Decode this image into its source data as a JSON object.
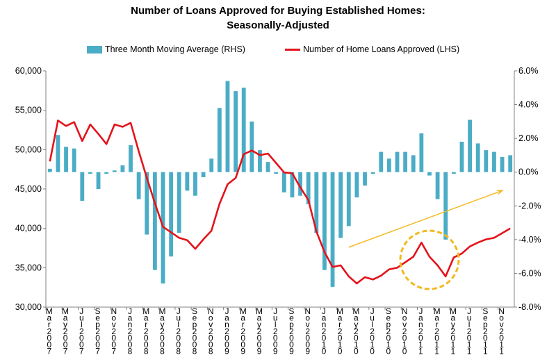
{
  "chart_data": {
    "type": "bar+line",
    "title": "Number of Loans Approved for Buying Established Homes:",
    "subtitle": "Seasonally-Adjusted",
    "legend": {
      "placement": "top"
    },
    "colors": {
      "bar": "#4bacc6",
      "line": "#e3131b",
      "annotation": "#f2b81e"
    },
    "y_left": {
      "min": 30000,
      "max": 60000,
      "step": 5000,
      "ticks": [
        "30,000",
        "35,000",
        "40,000",
        "45,000",
        "50,000",
        "55,000",
        "60,000"
      ]
    },
    "y_right": {
      "min": -8,
      "max": 6,
      "step": 2,
      "ticks": [
        "-8.0%",
        "-6.0%",
        "-4.0%",
        "-2.0%",
        "0.0%",
        "2.0%",
        "4.0%",
        "6.0%"
      ]
    },
    "x_labels": [
      "Mar 2007",
      "May 2007",
      "Jul 2007",
      "Sep 2007",
      "Nov 2007",
      "Jan 2008",
      "Mar 2008",
      "May 2008",
      "Jul 2008",
      "Sep 2008",
      "Nov 2008",
      "Jan 2009",
      "Mar 2009",
      "May 2009",
      "Jul 2009",
      "Sep 2009",
      "Nov 2009",
      "Jan 2010",
      "Mar 2010",
      "May 2010",
      "Jul 2010",
      "Sep 2010",
      "Nov 2010",
      "Jan 2011",
      "Mar 2011",
      "May 2011",
      "Jul 2011",
      "Sep 2011",
      "Nov 2011"
    ],
    "grid": false,
    "series": [
      {
        "name": "Three Month Moving Average (RHS)",
        "type": "bar",
        "axis": "right",
        "values": [
          0.2,
          2.2,
          1.5,
          1.4,
          -1.7,
          -0.1,
          -1.0,
          -0.1,
          0.1,
          0.4,
          1.6,
          -1.6,
          -3.7,
          -5.8,
          -6.6,
          -5.0,
          -3.6,
          -1.1,
          -1.4,
          -0.3,
          0.8,
          3.8,
          5.4,
          4.8,
          5.0,
          3.0,
          1.3,
          0.6,
          -0.1,
          -1.2,
          -1.5,
          -1.4,
          -1.9,
          -3.6,
          -5.8,
          -6.8,
          -3.9,
          -3.2,
          -1.5,
          -0.8,
          -0.1,
          1.2,
          0.8,
          1.2,
          1.2,
          1.0,
          2.3,
          -0.2,
          -1.6,
          -4.0,
          -0.1,
          1.8,
          3.1,
          1.7,
          1.3,
          1.2,
          0.9,
          1.0
        ]
      },
      {
        "name": "Number of Home Loans Approved (LHS)",
        "type": "line",
        "axis": "left",
        "values": [
          48500,
          53700,
          53000,
          53500,
          51100,
          53200,
          52000,
          50700,
          53200,
          52900,
          53400,
          49800,
          46400,
          43200,
          40200,
          39500,
          38800,
          38500,
          37400,
          38600,
          39700,
          43100,
          45600,
          46400,
          49400,
          49900,
          49300,
          49500,
          48300,
          47100,
          47000,
          45200,
          43600,
          39600,
          37000,
          35100,
          35300,
          33900,
          33000,
          33800,
          33500,
          34000,
          34800,
          35000,
          35700,
          36400,
          38200,
          36400,
          35300,
          33900,
          36300,
          36800,
          37700,
          38200,
          38600,
          38800,
          39400,
          40000
        ]
      }
    ],
    "annotations": [
      {
        "type": "arrow",
        "note": "upward trend"
      },
      {
        "type": "dashed-circle",
        "note": "highlighted dip"
      }
    ]
  }
}
